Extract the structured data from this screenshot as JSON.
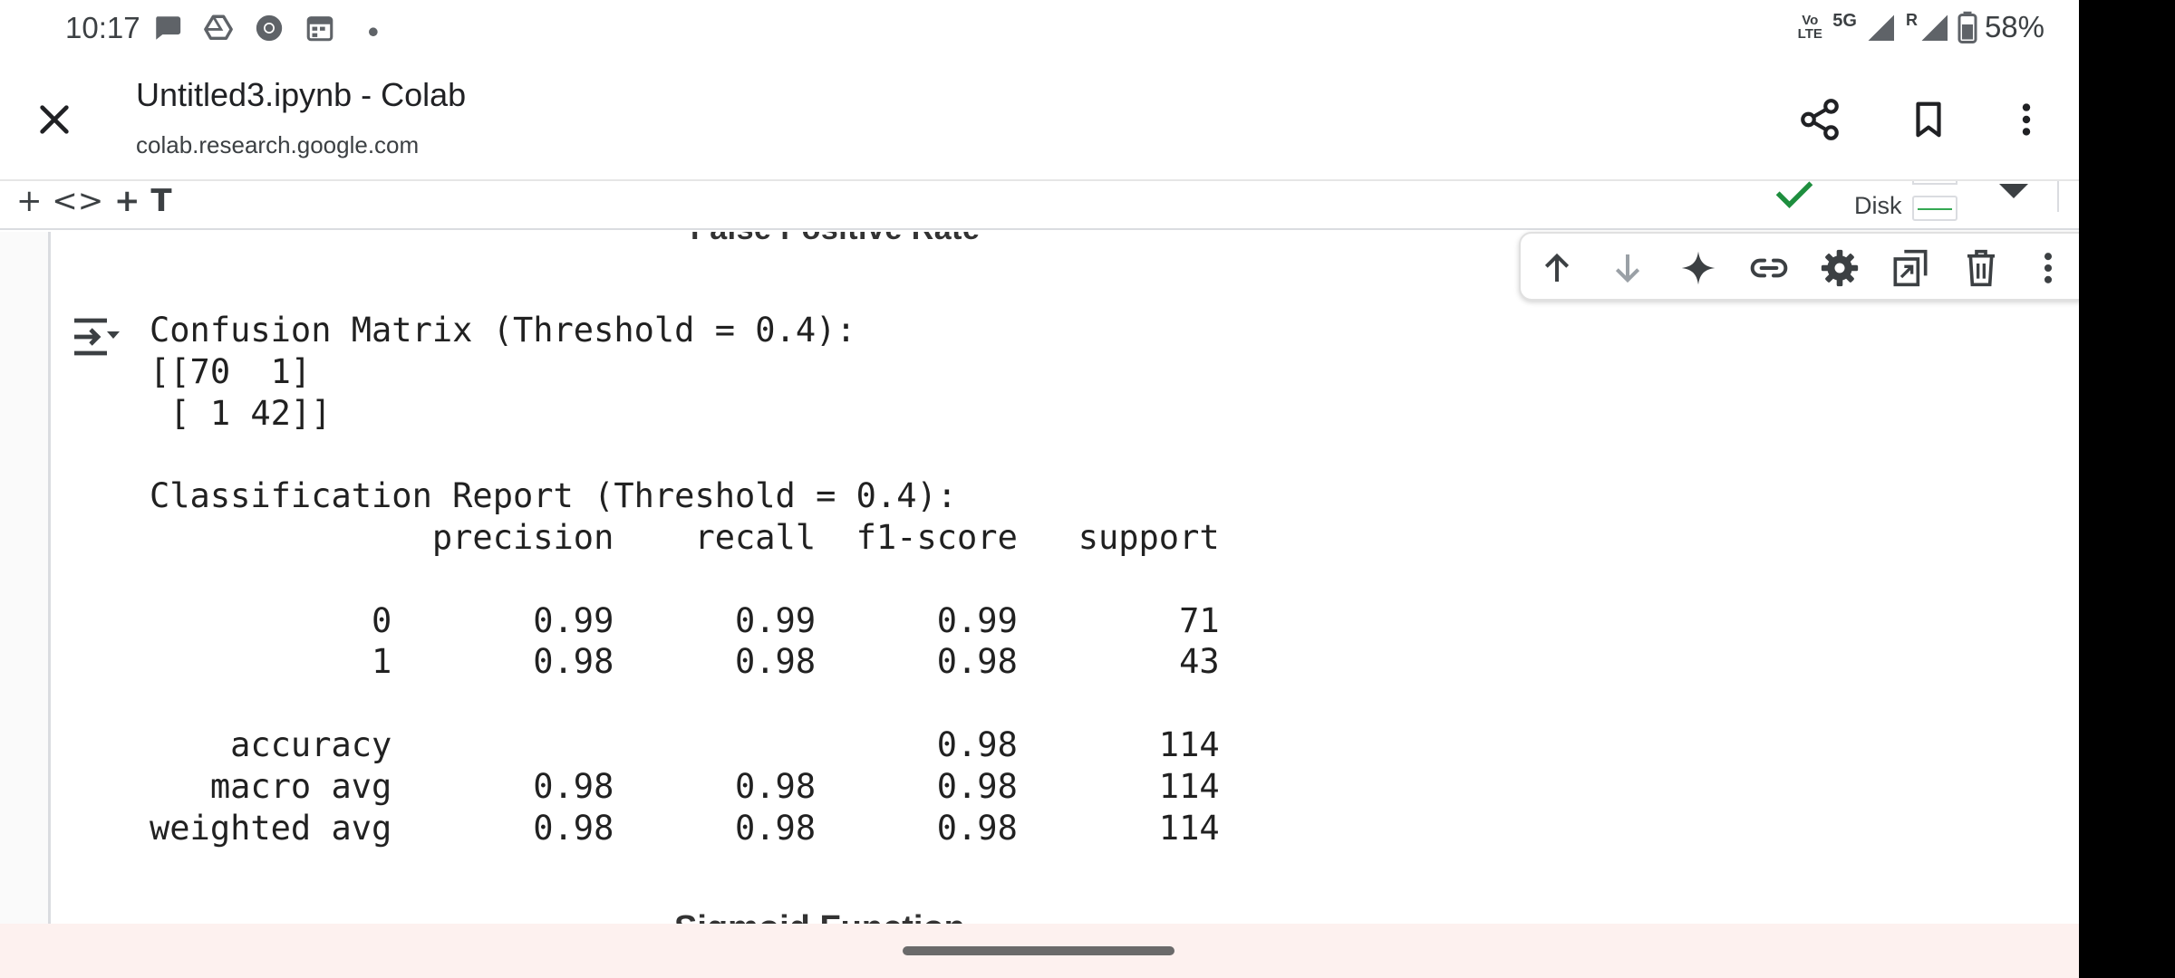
{
  "status_bar": {
    "time": "10:17",
    "notification_icons": [
      "chat-bubble-icon",
      "google-drive-icon",
      "chrome-icon",
      "calendar-icon",
      "more-dot-icon"
    ],
    "volte_label": "Vo LTE",
    "network_label": "5G",
    "roaming_label": "R",
    "battery_percent": "58%"
  },
  "app_bar": {
    "title": "Untitled3.ipynb - Colab",
    "url": "colab.research.google.com",
    "close_icon": "close-icon",
    "share_icon": "share-icon",
    "bookmark_icon": "bookmark-icon",
    "more_icon": "more-vert-icon"
  },
  "colab_toolbar": {
    "add_code_label": "+ <>",
    "add_text_label": "+ T",
    "disk_label": "Disk",
    "colors": {
      "connected": "#1e8e3e",
      "disk_fill": "#34a853"
    }
  },
  "cell_toolbar": {
    "buttons": [
      "move-up",
      "move-down",
      "gemini",
      "link",
      "settings",
      "mirror-cell",
      "delete",
      "more"
    ]
  },
  "notebook": {
    "plot_xlabel": "False Positive Rate",
    "next_plot_title": "Sigmoid Function",
    "output": {
      "lines": [
        "Confusion Matrix (Threshold = 0.4):",
        "[[70  1]",
        " [ 1 42]]",
        "",
        "Classification Report (Threshold = 0.4):",
        "              precision    recall  f1-score   support",
        "",
        "           0       0.99      0.99      0.99        71",
        "           1       0.98      0.98      0.98        43",
        "",
        "    accuracy                           0.98       114",
        "   macro avg       0.98      0.98      0.98       114",
        "weighted avg       0.98      0.98      0.98       114"
      ]
    }
  }
}
